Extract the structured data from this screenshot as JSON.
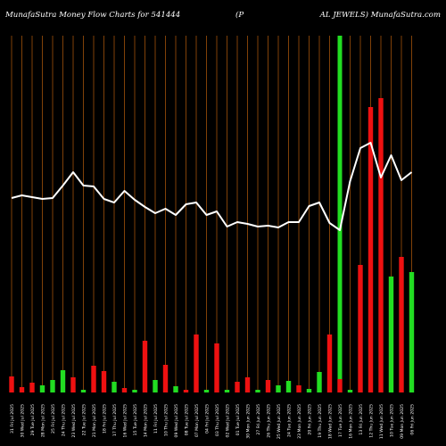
{
  "header": {
    "left": "MunafaSutra  Money Flow  Charts for 541444",
    "mid": "(P",
    "right": "AL JEWELS) MunafaSutra.com"
  },
  "colors": {
    "background": "#000000",
    "gridline": "#a0520a",
    "up": "#22dd22",
    "down": "#ee1111",
    "line": "#ffffff",
    "highlight": "#22dd22",
    "label": "#ffffff"
  },
  "chart_data": {
    "type": "bar",
    "title": "MunafaSutra  Money Flow  Charts for 541444",
    "grid": "vertical",
    "highlight_index": 32,
    "categories": [
      "31 Fri Jul 2025",
      "30 Wed Jul 2025",
      "29 Tue Jul 2025",
      "28 Mon Jul 2025",
      "25 Fri Jul 2025",
      "24 Thu Jul 2025",
      "23 Wed Jul 2025",
      "22 Tue Jul 2025",
      "21 Mon Jul 2025",
      "18 Fri Jul 2025",
      "17 Thu Jul 2025",
      "16 Wed Jul 2025",
      "15 Tue Jul 2025",
      "14 Mon Jul 2025",
      "11 Fri Jul 2025",
      "10 Thu Jul 2025",
      "09 Wed Jul 2025",
      "08 Tue Jul 2025",
      "07 Mon Jul 2025",
      "04 Fri Jul 2025",
      "03 Thu Jul 2025",
      "02 Wed Jul 2025",
      "01 Tue Jul 2025",
      "30 Mon Jun 2025",
      "27 Fri Jun 2025",
      "26 Thu Jun 2025",
      "25 Wed Jun 2025",
      "24 Tue Jun 2025",
      "23 Mon Jun 2025",
      "20 Fri Jun 2025",
      "19 Thu Jun 2025",
      "18 Wed Jun 2025",
      "17 Tue Jun 2025",
      "16 Mon Jun 2025",
      "13 Fri Jun 2025",
      "12 Thu Jun 2025",
      "11 Wed Jun 2025",
      "10 Tue Jun 2025",
      "09 Mon Jun 2025",
      "06 Fri Jun 2025"
    ],
    "bars": [
      {
        "value": 18,
        "color": "red"
      },
      {
        "value": 6,
        "color": "red"
      },
      {
        "value": 11,
        "color": "red"
      },
      {
        "value": 8,
        "color": "green"
      },
      {
        "value": 14,
        "color": "green"
      },
      {
        "value": 25,
        "color": "green"
      },
      {
        "value": 17,
        "color": "red"
      },
      {
        "value": 3,
        "color": "green"
      },
      {
        "value": 30,
        "color": "red"
      },
      {
        "value": 24,
        "color": "red"
      },
      {
        "value": 12,
        "color": "green"
      },
      {
        "value": 5,
        "color": "red"
      },
      {
        "value": 3,
        "color": "green"
      },
      {
        "value": 58,
        "color": "red"
      },
      {
        "value": 14,
        "color": "green"
      },
      {
        "value": 31,
        "color": "red"
      },
      {
        "value": 7,
        "color": "green"
      },
      {
        "value": 3,
        "color": "red"
      },
      {
        "value": 65,
        "color": "red"
      },
      {
        "value": 3,
        "color": "green"
      },
      {
        "value": 55,
        "color": "red"
      },
      {
        "value": 3,
        "color": "green"
      },
      {
        "value": 12,
        "color": "red"
      },
      {
        "value": 17,
        "color": "red"
      },
      {
        "value": 3,
        "color": "green"
      },
      {
        "value": 14,
        "color": "red"
      },
      {
        "value": 8,
        "color": "green"
      },
      {
        "value": 13,
        "color": "green"
      },
      {
        "value": 8,
        "color": "red"
      },
      {
        "value": 4,
        "color": "green"
      },
      {
        "value": 23,
        "color": "green"
      },
      {
        "value": 65,
        "color": "red"
      },
      {
        "value": 15,
        "color": "red"
      },
      {
        "value": 3,
        "color": "green"
      },
      {
        "value": 143,
        "color": "red"
      },
      {
        "value": 320,
        "color": "red"
      },
      {
        "value": 330,
        "color": "red"
      },
      {
        "value": 130,
        "color": "green"
      },
      {
        "value": 152,
        "color": "red"
      },
      {
        "value": 135,
        "color": "green"
      }
    ],
    "line": [
      218,
      221,
      219,
      217,
      218,
      232,
      247,
      232,
      231,
      217,
      213,
      226,
      216,
      208,
      201,
      206,
      199,
      211,
      213,
      199,
      203,
      186,
      191,
      189,
      186,
      187,
      185,
      191,
      191,
      209,
      213,
      190,
      182,
      237,
      274,
      280,
      241,
      266,
      238,
      247
    ],
    "ylim": [
      0,
      400
    ]
  }
}
